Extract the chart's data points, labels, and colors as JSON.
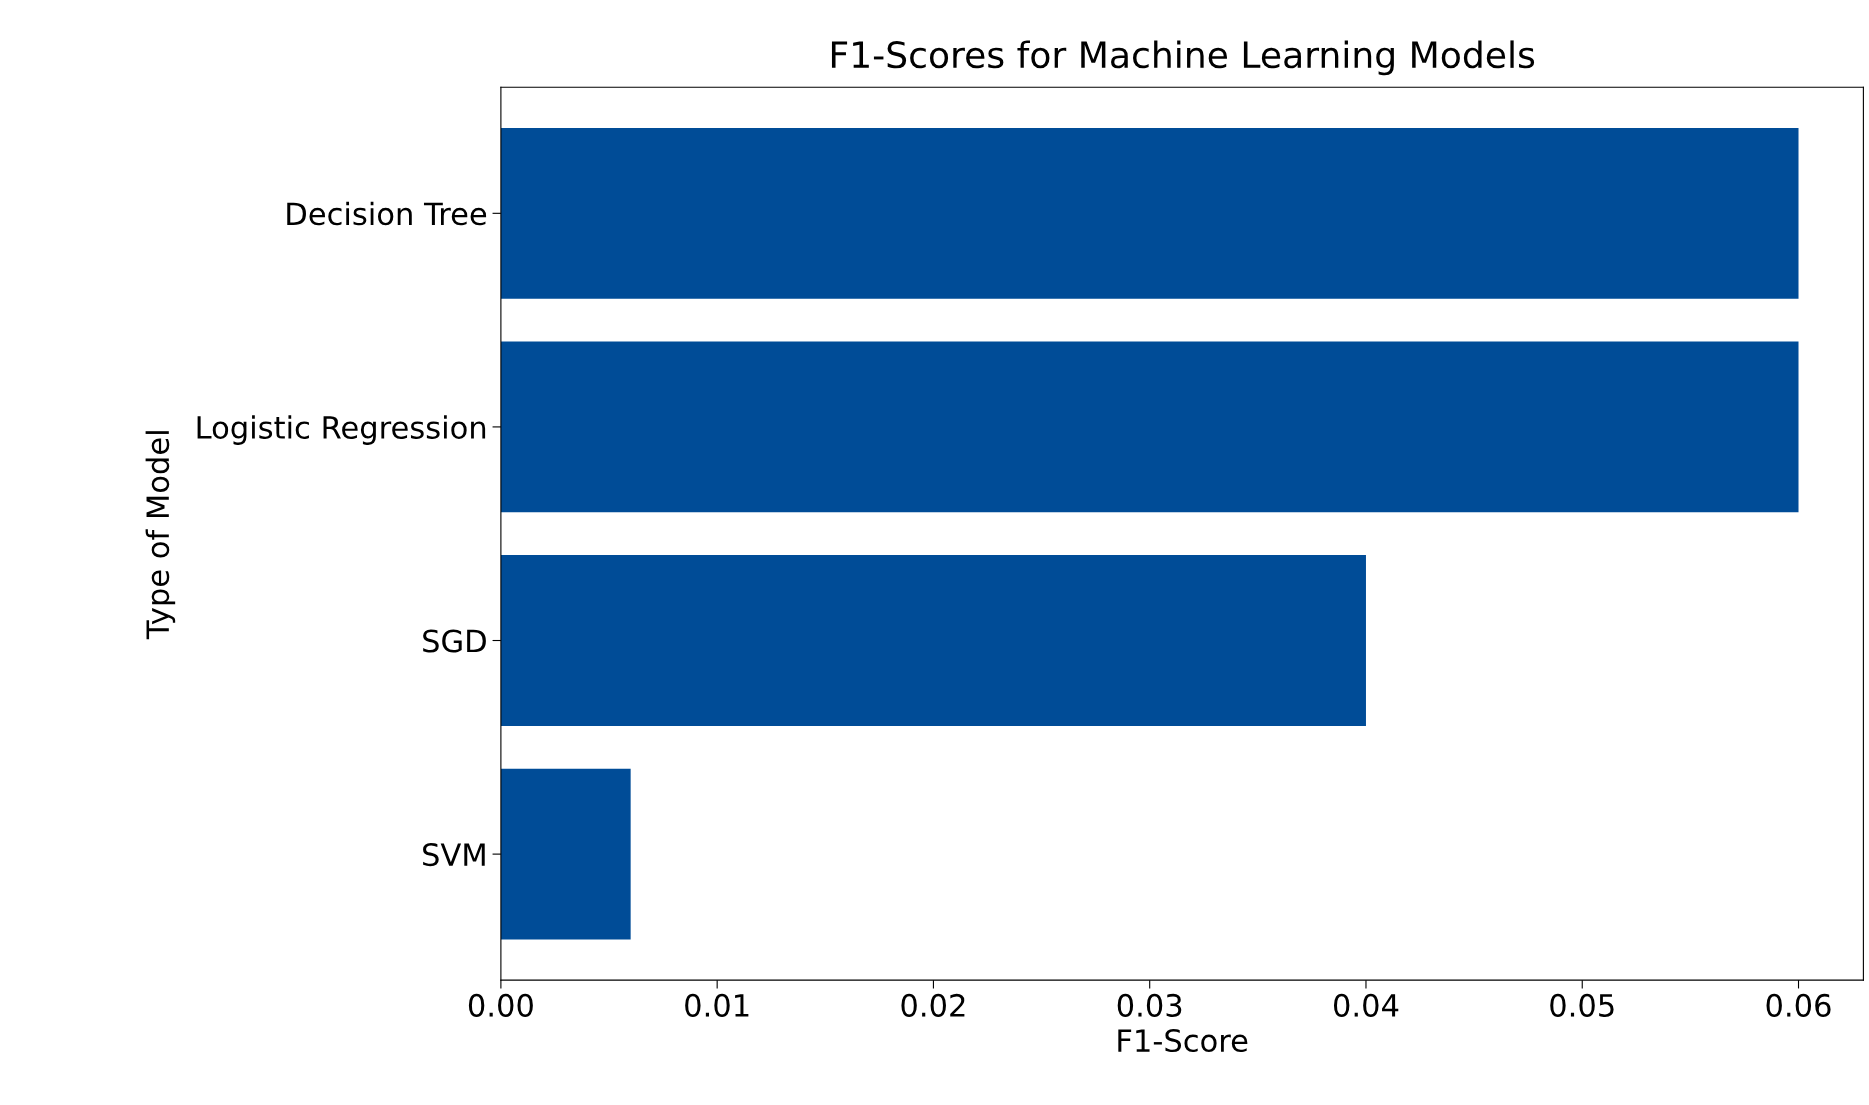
{
  "chart_data": {
    "type": "bar",
    "orientation": "horizontal",
    "title": "F1-Scores for Machine Learning Models",
    "xlabel": "F1-Score",
    "ylabel": "Type of Model",
    "categories": [
      "Decision Tree",
      "Logistic Regression",
      "SGD",
      "SVM"
    ],
    "values": [
      0.06,
      0.06,
      0.04,
      0.006
    ],
    "color": "#004c97",
    "xlim": [
      0,
      0.063
    ],
    "xticks": [
      {
        "value": 0,
        "label": "0.00"
      },
      0.01,
      0.02,
      0.03,
      0.04,
      0.05,
      0.06
    ],
    "grid": false
  }
}
